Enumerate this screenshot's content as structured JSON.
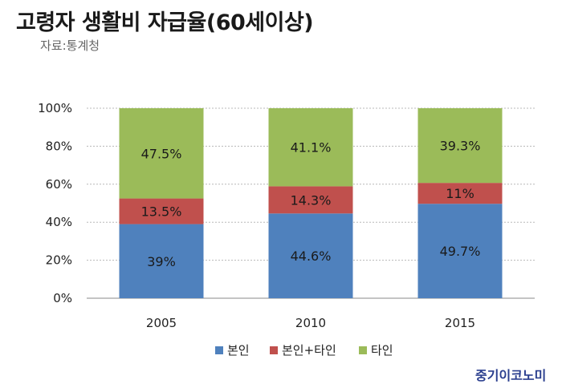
{
  "title": "고령자 생활비 자급율(60세이상)",
  "source": "자료:통계청",
  "brand": "중기이코노미",
  "chart_data": {
    "type": "bar",
    "stacked": true,
    "categories": [
      "2005",
      "2010",
      "2015"
    ],
    "series": [
      {
        "name": "본인",
        "values": [
          39,
          44.6,
          49.7
        ],
        "labels": [
          "39%",
          "44.6%",
          "49.7%"
        ],
        "color": "#4f81bd"
      },
      {
        "name": "본인+타인",
        "values": [
          13.5,
          14.3,
          11
        ],
        "labels": [
          "13.5%",
          "14.3%",
          "11%"
        ],
        "color": "#c0504d"
      },
      {
        "name": "타인",
        "values": [
          47.5,
          41.1,
          39.3
        ],
        "labels": [
          "47.5%",
          "41.1%",
          "39.3%"
        ],
        "color": "#9bbb59"
      }
    ],
    "ylim": [
      0,
      100
    ],
    "yticks": [
      "0%",
      "20%",
      "40%",
      "60%",
      "80%",
      "100%"
    ],
    "grid": true,
    "gridline_style": "dashed",
    "legend_position": "bottom"
  }
}
